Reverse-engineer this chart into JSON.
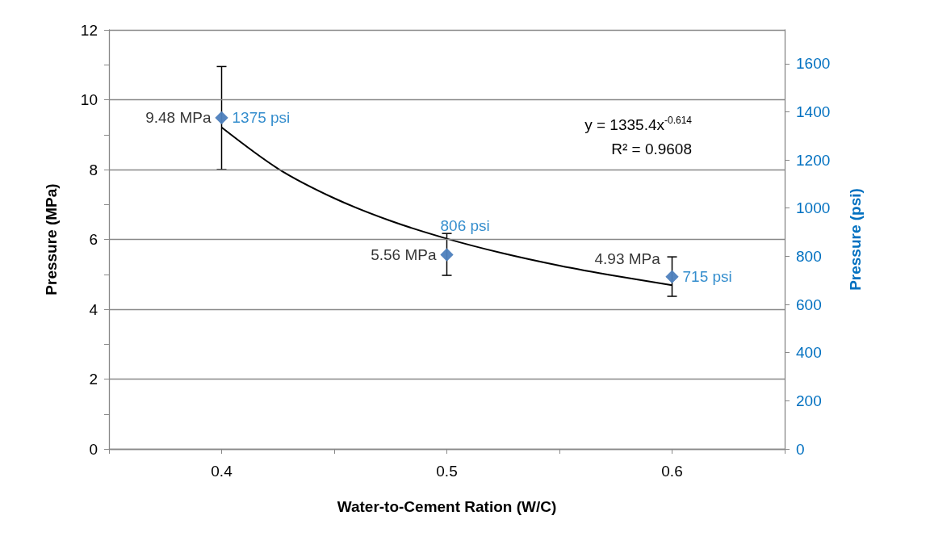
{
  "chart_data": {
    "type": "scatter",
    "xlabel": "Water-to-Cement Ration (W/C)",
    "ylabel": "Pressure (MPa)",
    "y2label": "Pressure (psi)",
    "x": [
      0.4,
      0.5,
      0.6
    ],
    "xlim": [
      0.35,
      0.65
    ],
    "xticks": [
      {
        "value": 0.35,
        "label": null
      },
      {
        "value": 0.4,
        "label": "0.4"
      },
      {
        "value": 0.45,
        "label": null
      },
      {
        "value": 0.5,
        "label": "0.5"
      },
      {
        "value": 0.55,
        "label": null
      },
      {
        "value": 0.6,
        "label": "0.6"
      },
      {
        "value": 0.65,
        "label": null
      }
    ],
    "ylim": [
      0,
      12
    ],
    "yticks": [
      0,
      {
        "value": 1,
        "label": null
      },
      2,
      {
        "value": 3,
        "label": null
      },
      4,
      {
        "value": 5,
        "label": null
      },
      6,
      {
        "value": 7,
        "label": null
      },
      8,
      {
        "value": 9,
        "label": null
      },
      10,
      {
        "value": 11,
        "label": null
      },
      12
    ],
    "y2lim": [
      0,
      1740
    ],
    "y2ticks": [
      0,
      200,
      400,
      600,
      800,
      1000,
      1200,
      1400,
      1600
    ],
    "series": [
      {
        "color": "#4f81bd",
        "values": [
          9.48,
          5.56,
          4.93
        ],
        "errors": [
          [
            8.0,
            10.95
          ],
          [
            4.97,
            6.17
          ],
          [
            4.37,
            5.5
          ]
        ],
        "value_labels": [
          "9.48 MPa",
          "5.56 MPa",
          "4.93 MPa"
        ]
      },
      {
        "axis": "y2",
        "color": "#4f81bd",
        "values": [
          1375,
          806,
          715
        ],
        "value_labels": [
          "1375 psi",
          "806 psi",
          "715 psi"
        ]
      },
      {
        "type": "line",
        "axis": "y2",
        "color": "#000000",
        "marker": "none",
        "x": [
          0.4,
          0.425,
          0.45,
          0.475,
          0.5,
          0.525,
          0.55,
          0.575,
          0.6
        ],
        "values": [
          1335,
          1164,
          1041,
          947,
          873,
          812,
          761,
          718,
          680
        ]
      }
    ],
    "annotations": [
      "y = 1335.4x$^{-0.614}$",
      "R² = 0.9608"
    ],
    "marker": "diamond",
    "grid": "y"
  }
}
